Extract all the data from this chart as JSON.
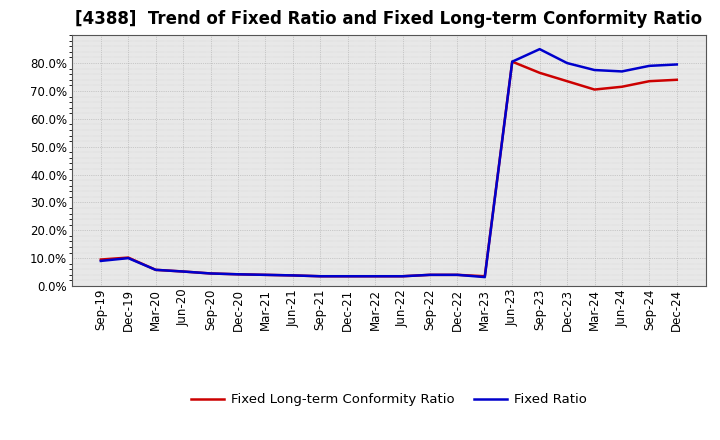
{
  "title": "[4388]  Trend of Fixed Ratio and Fixed Long-term Conformity Ratio",
  "x_labels": [
    "Sep-19",
    "Dec-19",
    "Mar-20",
    "Jun-20",
    "Sep-20",
    "Dec-20",
    "Mar-21",
    "Jun-21",
    "Sep-21",
    "Dec-21",
    "Mar-22",
    "Jun-22",
    "Sep-22",
    "Dec-22",
    "Mar-23",
    "Jun-23",
    "Sep-23",
    "Dec-23",
    "Mar-24",
    "Jun-24",
    "Sep-24",
    "Dec-24"
  ],
  "fixed_ratio": [
    9.0,
    10.0,
    5.8,
    5.2,
    4.5,
    4.2,
    4.0,
    3.8,
    3.5,
    3.5,
    3.5,
    3.5,
    4.0,
    4.0,
    3.2,
    80.5,
    85.0,
    80.0,
    77.5,
    77.0,
    79.0,
    79.5
  ],
  "fixed_lt_ratio": [
    9.5,
    10.2,
    5.8,
    5.2,
    4.5,
    4.2,
    4.0,
    3.8,
    3.5,
    3.5,
    3.5,
    3.5,
    4.0,
    4.0,
    3.5,
    80.5,
    76.5,
    73.5,
    70.5,
    71.5,
    73.5,
    74.0
  ],
  "fixed_ratio_color": "#0000cc",
  "fixed_lt_ratio_color": "#cc0000",
  "background_color": "#ffffff",
  "plot_bg_color": "#e8e8e8",
  "grid_color": "#999999",
  "ylim": [
    0,
    90
  ],
  "yticks": [
    0.0,
    10.0,
    20.0,
    30.0,
    40.0,
    50.0,
    60.0,
    70.0,
    80.0
  ],
  "title_fontsize": 12,
  "legend_fontsize": 9.5,
  "axis_fontsize": 8.5,
  "linewidth": 1.8
}
